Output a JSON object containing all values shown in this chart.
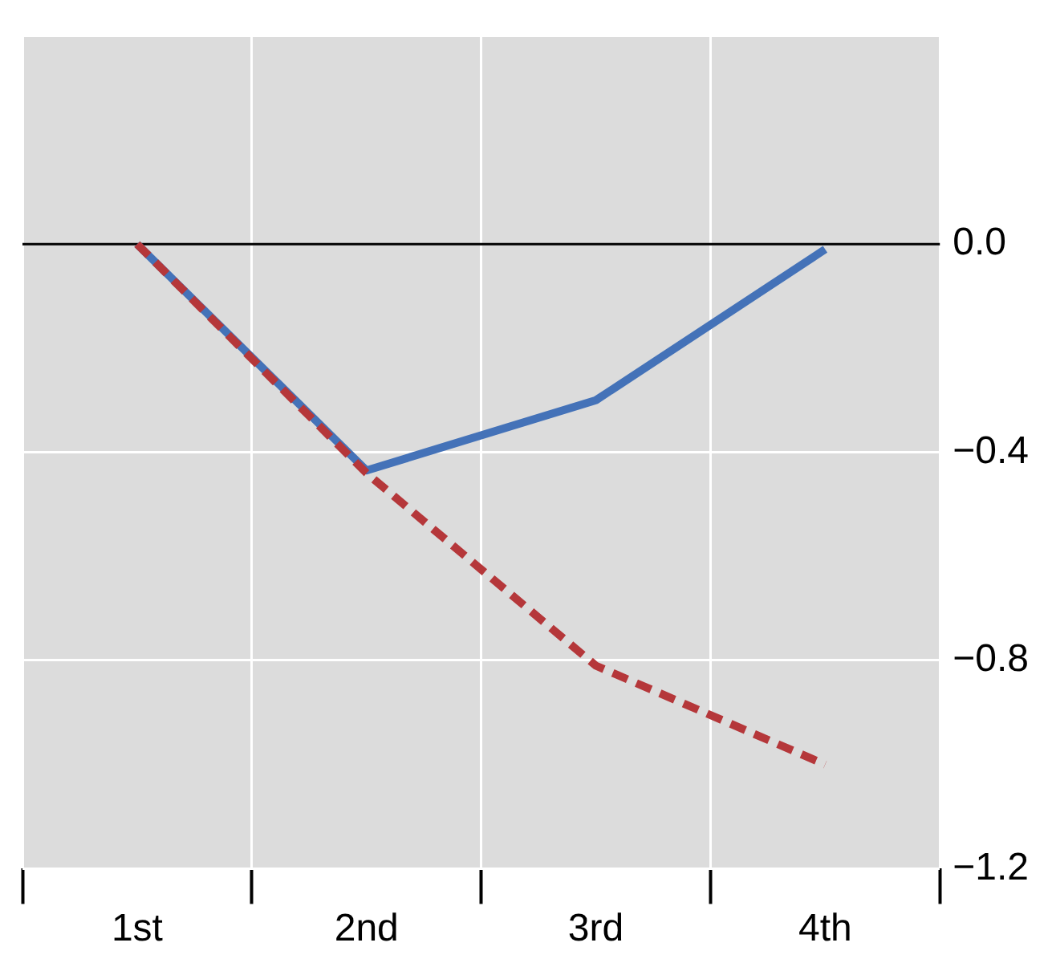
{
  "chart_data": {
    "type": "line",
    "categories": [
      "1st",
      "2nd",
      "3rd",
      "4th"
    ],
    "series": [
      {
        "color": "#4472b8",
        "values": [
          0,
          -0.435,
          -0.3,
          -0.01
        ],
        "line_style": "solid"
      },
      {
        "color": "#b5373a",
        "values": [
          0,
          -0.44,
          -0.81,
          -1.0
        ],
        "line_style": "dashed"
      }
    ],
    "ylim": [
      -1.2,
      0.4
    ],
    "yticks": [
      {
        "value": 0,
        "label": "0.0"
      },
      {
        "value": -0.4,
        "label": "−0.4"
      },
      {
        "value": -0.8,
        "label": "−0.8"
      },
      {
        "value": -1.2,
        "label": "−1.2"
      },
      {
        "value": 0.4,
        "label": null
      }
    ],
    "ref_lines": [
      {
        "axis": "y",
        "value": 0,
        "color": "#000000"
      }
    ],
    "grid": true,
    "legend": false,
    "marker": "none"
  }
}
